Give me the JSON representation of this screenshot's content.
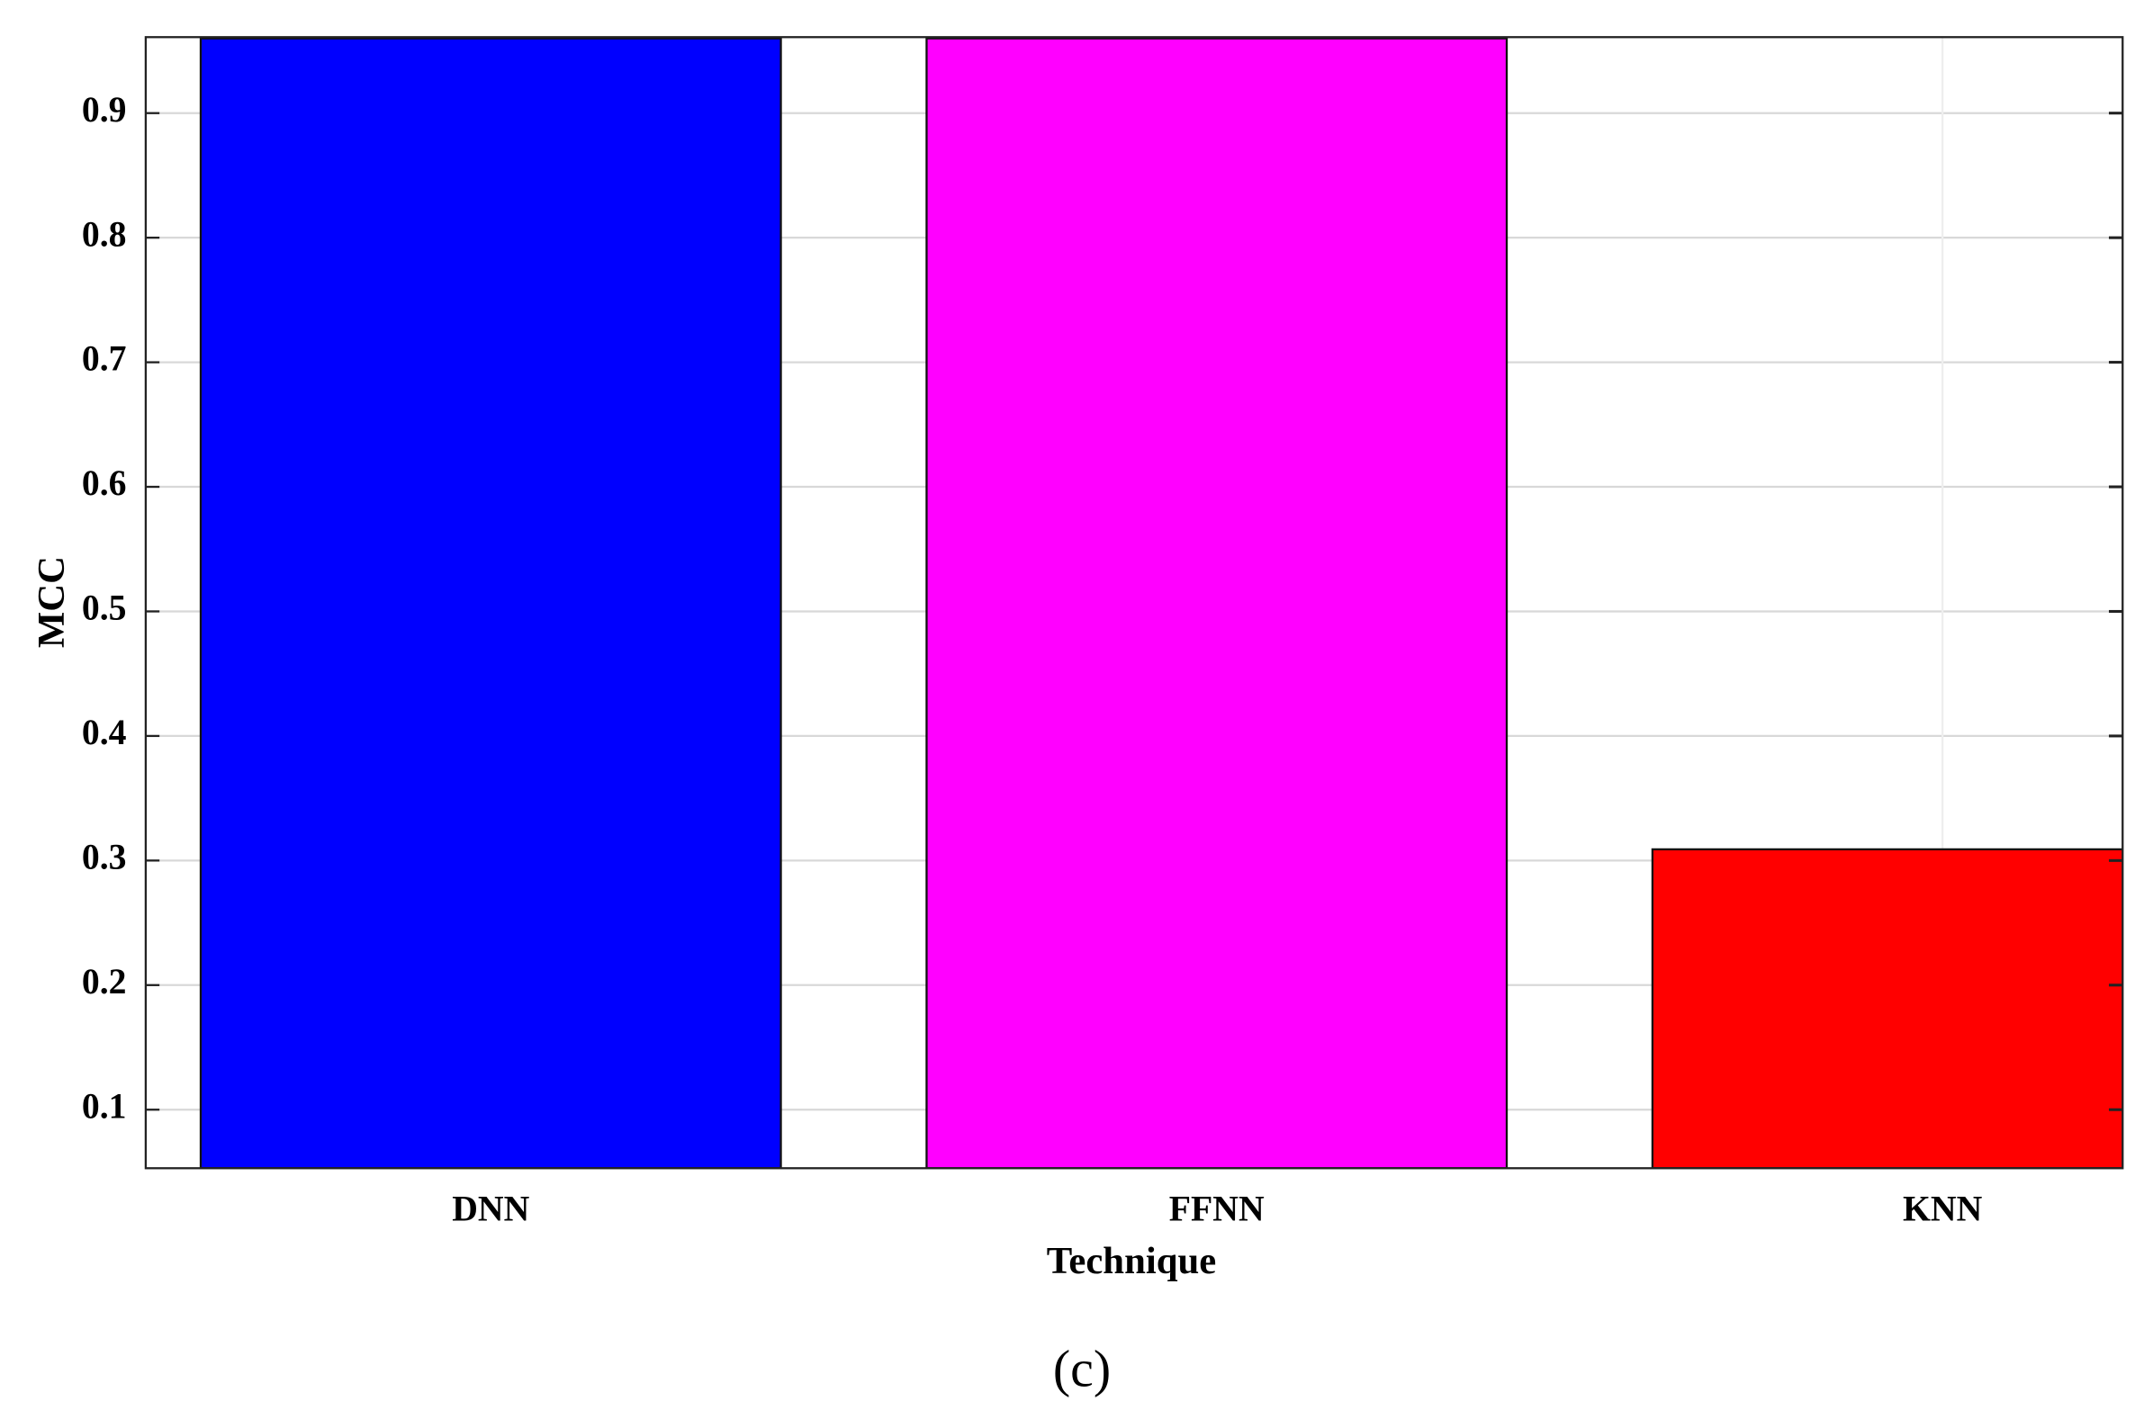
{
  "chart_data": {
    "type": "bar",
    "x_label": "Technique",
    "y_label": "MCC",
    "caption": "(c)",
    "categories": [
      "DNN",
      "FFNN",
      "KNN"
    ],
    "values": [
      0.96,
      0.96,
      0.309
    ],
    "colors": [
      "#0000ff",
      "#ff00ff",
      "#ff0000"
    ],
    "ylim": [
      0.053,
      0.961
    ],
    "yticks": [
      0.1,
      0.2,
      0.3,
      0.4,
      0.5,
      0.6,
      0.7,
      0.8,
      0.9
    ],
    "grid": true
  }
}
